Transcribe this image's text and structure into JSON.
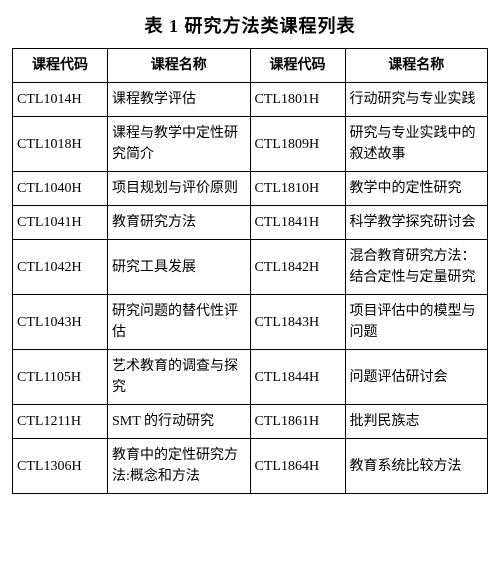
{
  "title": "表 1  研究方法类课程列表",
  "headers": {
    "h1": "课程代码",
    "h2": "课程名称",
    "h3": "课程代码",
    "h4": "课程名称"
  },
  "rows": [
    {
      "c1": "CTL1014H",
      "n1": "课程教学评估",
      "c2": "CTL1801H",
      "n2": "行动研究与专业实践"
    },
    {
      "c1": "CTL1018H",
      "n1": "课程与教学中定性研究简介",
      "c2": "CTL1809H",
      "n2": "研究与专业实践中的叙述故事"
    },
    {
      "c1": "CTL1040H",
      "n1": "项目规划与评价原则",
      "c2": "CTL1810H",
      "n2": "教学中的定性研究"
    },
    {
      "c1": "CTL1041H",
      "n1": "教育研究方法",
      "c2": "CTL1841H",
      "n2": "科学教学探究研讨会"
    },
    {
      "c1": "CTL1042H",
      "n1": "研究工具发展",
      "c2": "CTL1842H",
      "n2": "混合教育研究方法：结合定性与定量研究"
    },
    {
      "c1": "CTL1043H",
      "n1": "研究问题的替代性评估",
      "c2": "CTL1843H",
      "n2": "项目评估中的模型与问题"
    },
    {
      "c1": "CTL1105H",
      "n1": "艺术教育的调查与探究",
      "c2": "CTL1844H",
      "n2": "问题评估研讨会"
    },
    {
      "c1": "CTL1211H",
      "n1": "SMT 的行动研究",
      "c2": "CTL1861H",
      "n2": "批判民族志"
    },
    {
      "c1": "CTL1306H",
      "n1": "教育中的定性研究方法:概念和方法",
      "c2": "CTL1864H",
      "n2": "教育系统比较方法"
    }
  ],
  "style": {
    "background_color": "#ffffff",
    "border_color": "#000000",
    "title_fontsize": 18,
    "cell_fontsize": 14,
    "font_family": "SimSun"
  }
}
